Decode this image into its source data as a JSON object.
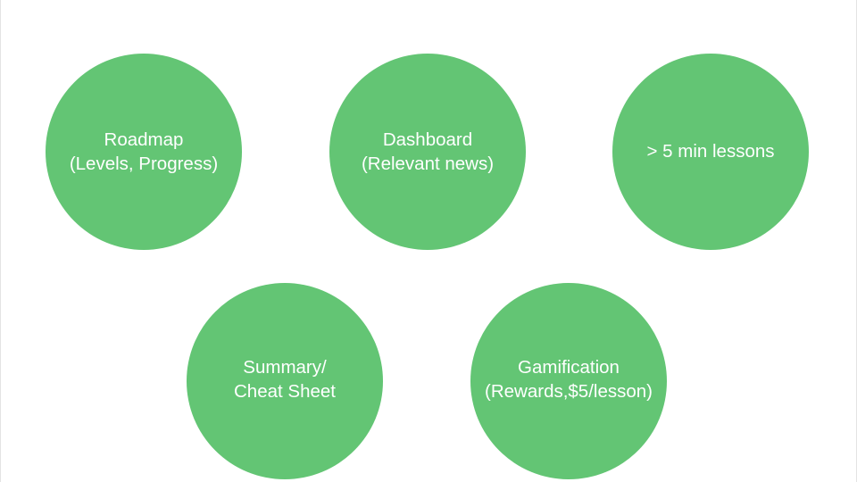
{
  "colors": {
    "circle_fill": "#63c574",
    "text": "#ffffff",
    "background": "#ffffff"
  },
  "nodes": [
    {
      "lines": [
        "Roadmap",
        "(Levels, Progress)"
      ]
    },
    {
      "lines": [
        "Dashboard",
        "(Relevant news)"
      ]
    },
    {
      "lines": [
        "> 5 min lessons"
      ]
    },
    {
      "lines": [
        "Summary/",
        "Cheat Sheet"
      ]
    },
    {
      "lines": [
        "Gamification",
        "(Rewards,$5/lesson)"
      ]
    }
  ]
}
